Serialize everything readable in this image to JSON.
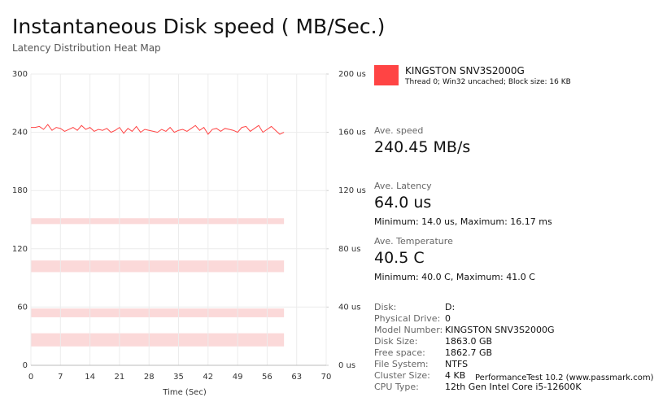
{
  "chart_data": {
    "type": "line",
    "title": "Instantaneous Disk speed ( MB/Sec.)",
    "subtitle": "Latency Distribution Heat Map",
    "xlabel": "Time (Sec)",
    "x": [
      0,
      1,
      2,
      3,
      4,
      5,
      6,
      7,
      8,
      9,
      10,
      11,
      12,
      13,
      14,
      15,
      16,
      17,
      18,
      19,
      20,
      21,
      22,
      23,
      24,
      25,
      26,
      27,
      28,
      29,
      30,
      31,
      32,
      33,
      34,
      35,
      36,
      37,
      38,
      39,
      40,
      41,
      42,
      43,
      44,
      45,
      46,
      47,
      48,
      49,
      50,
      51,
      52,
      53,
      54,
      55,
      56,
      57,
      58,
      59,
      60
    ],
    "series": [
      {
        "name": "KINGSTON SNV3S2000G",
        "color": "#ff4444",
        "values": [
          245,
          245,
          246,
          243,
          248,
          242,
          245,
          244,
          241,
          243,
          245,
          242,
          247,
          243,
          245,
          241,
          243,
          242,
          244,
          240,
          242,
          245,
          239,
          244,
          241,
          246,
          240,
          243,
          242,
          241,
          240,
          243,
          241,
          245,
          240,
          242,
          243,
          241,
          244,
          247,
          242,
          245,
          238,
          243,
          244,
          241,
          244,
          243,
          242,
          240,
          245,
          246,
          241,
          244,
          247,
          240,
          243,
          246,
          242,
          238,
          240
        ]
      }
    ],
    "xlim": [
      0,
      70
    ],
    "xticks": [
      0,
      7,
      14,
      21,
      28,
      35,
      42,
      49,
      56,
      63,
      70
    ],
    "ylim": [
      0,
      300
    ],
    "yticks": [
      0,
      60,
      120,
      180,
      240,
      300
    ],
    "y2lim": [
      0,
      200
    ],
    "y2ticks": [
      {
        "value": 0,
        "label": "0 us"
      },
      {
        "value": 40,
        "label": "40 us"
      },
      {
        "value": 80,
        "label": "80 us"
      },
      {
        "value": 120,
        "label": "120 us"
      },
      {
        "value": 160,
        "label": "160 us"
      },
      {
        "value": 200,
        "label": "200 us"
      }
    ],
    "heatmap": {
      "color": "#fbd9d9",
      "y2_ranges": [
        [
          97,
          101
        ],
        [
          64,
          72
        ],
        [
          33,
          39
        ],
        [
          13,
          22
        ]
      ]
    },
    "grid": true
  },
  "legend": {
    "description": "Thread 0; Win32 uncached; Block size: 16 KB"
  },
  "stats": [
    {
      "label": "Ave. speed",
      "value": "240.45 MB/s"
    },
    {
      "label": "Ave. Latency",
      "value": "64.0 us",
      "detail": "Minimum: 14.0 us, Maximum: 16.17 ms"
    },
    {
      "label": "Ave. Temperature",
      "value": "40.5 C",
      "detail": "Minimum: 40.0 C, Maximum: 41.0 C"
    }
  ],
  "details": [
    [
      "Disk:",
      "D:"
    ],
    [
      "Physical Drive:",
      "0"
    ],
    [
      "Model Number:",
      "KINGSTON SNV3S2000G"
    ],
    [
      "Disk Size:",
      "1863.0 GB"
    ],
    [
      "Free space:",
      "1862.7 GB"
    ],
    [
      "File System:",
      "NTFS"
    ],
    [
      "Cluster Size:",
      "4 KB"
    ],
    [
      "CPU Type:",
      "12th Gen Intel Core i5-12600K"
    ]
  ],
  "footer": "PerformanceTest 10.2 (www.passmark.com)"
}
